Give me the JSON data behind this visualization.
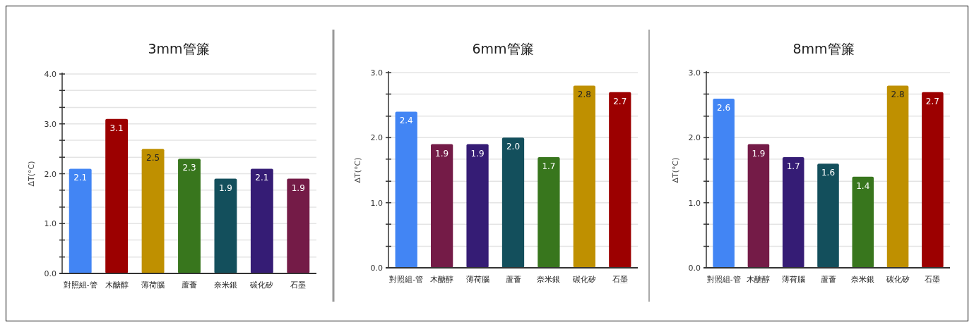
{
  "chart_data": [
    {
      "type": "bar",
      "title": "3mm管簾",
      "ylabel": "ΔT(°C)",
      "categories": [
        "對照組-管",
        "木醣醇",
        "薄荷腦",
        "蘆薈",
        "奈米銀",
        "碳化矽",
        "石墨"
      ],
      "values": [
        2.1,
        3.1,
        2.5,
        2.3,
        1.9,
        2.1,
        1.9
      ],
      "value_labels": [
        "2.1",
        "3.1",
        "2.5",
        "2.3",
        "1.9",
        "2.1",
        "1.9"
      ],
      "colors": [
        "#4285f4",
        "#9c0000",
        "#bf9000",
        "#38761d",
        "#134f5c",
        "#351c75",
        "#741b47"
      ],
      "ylim": [
        0,
        4
      ],
      "yticks": [
        {
          "value": 0,
          "label": "0.0"
        },
        {
          "value": 0.33,
          "label": null
        },
        {
          "value": 0.67,
          "label": null
        },
        {
          "value": 1,
          "label": "1.0"
        },
        {
          "value": 1.33,
          "label": null
        },
        {
          "value": 1.67,
          "label": null
        },
        {
          "value": 2,
          "label": "2.0"
        },
        {
          "value": 2.33,
          "label": null
        },
        {
          "value": 2.67,
          "label": null
        },
        {
          "value": 3,
          "label": "3.0"
        },
        {
          "value": 3.33,
          "label": null
        },
        {
          "value": 3.67,
          "label": null
        },
        {
          "value": 4,
          "label": "4.0"
        }
      ],
      "grid": "y"
    },
    {
      "type": "bar",
      "title": "6mm管簾",
      "ylabel": "ΔT(°C)",
      "categories": [
        "對照組-管",
        "木醣醇",
        "薄荷腦",
        "蘆薈",
        "奈米銀",
        "碳化矽",
        "石墨"
      ],
      "values": [
        2.4,
        1.9,
        1.9,
        2.0,
        1.7,
        2.8,
        2.7
      ],
      "value_labels": [
        "2.4",
        "1.9",
        "1.9",
        "2.0",
        "1.7",
        "2.8",
        "2.7"
      ],
      "colors": [
        "#4285f4",
        "#741b47",
        "#351c75",
        "#134f5c",
        "#38761d",
        "#bf9000",
        "#9c0000"
      ],
      "ylim": [
        0,
        3
      ],
      "yticks": [
        {
          "value": 0,
          "label": "0.0"
        },
        {
          "value": 0.33,
          "label": null
        },
        {
          "value": 0.67,
          "label": null
        },
        {
          "value": 1,
          "label": "1.0"
        },
        {
          "value": 1.33,
          "label": null
        },
        {
          "value": 1.67,
          "label": null
        },
        {
          "value": 2,
          "label": "2.0"
        },
        {
          "value": 2.33,
          "label": null
        },
        {
          "value": 2.67,
          "label": null
        },
        {
          "value": 3,
          "label": "3.0"
        }
      ],
      "grid": "y"
    },
    {
      "type": "bar",
      "title": "8mm管簾",
      "ylabel": "ΔT(°C)",
      "categories": [
        "對照組-管",
        "木醣醇",
        "薄荷腦",
        "蘆薈",
        "奈米銀",
        "碳化矽",
        "石墨"
      ],
      "values": [
        2.6,
        1.9,
        1.7,
        1.6,
        1.4,
        2.8,
        2.7
      ],
      "value_labels": [
        "2.6",
        "1.9",
        "1.7",
        "1.6",
        "1.4",
        "2.8",
        "2.7"
      ],
      "colors": [
        "#4285f4",
        "#741b47",
        "#351c75",
        "#134f5c",
        "#38761d",
        "#bf9000",
        "#9c0000"
      ],
      "ylim": [
        0,
        3
      ],
      "yticks": [
        {
          "value": 0,
          "label": "0.0"
        },
        {
          "value": 0.33,
          "label": null
        },
        {
          "value": 0.67,
          "label": null
        },
        {
          "value": 1,
          "label": "1.0"
        },
        {
          "value": 1.33,
          "label": null
        },
        {
          "value": 1.67,
          "label": null
        },
        {
          "value": 2,
          "label": "2.0"
        },
        {
          "value": 2.33,
          "label": null
        },
        {
          "value": 2.67,
          "label": null
        },
        {
          "value": 3,
          "label": "3.0"
        }
      ],
      "grid": "y"
    }
  ]
}
